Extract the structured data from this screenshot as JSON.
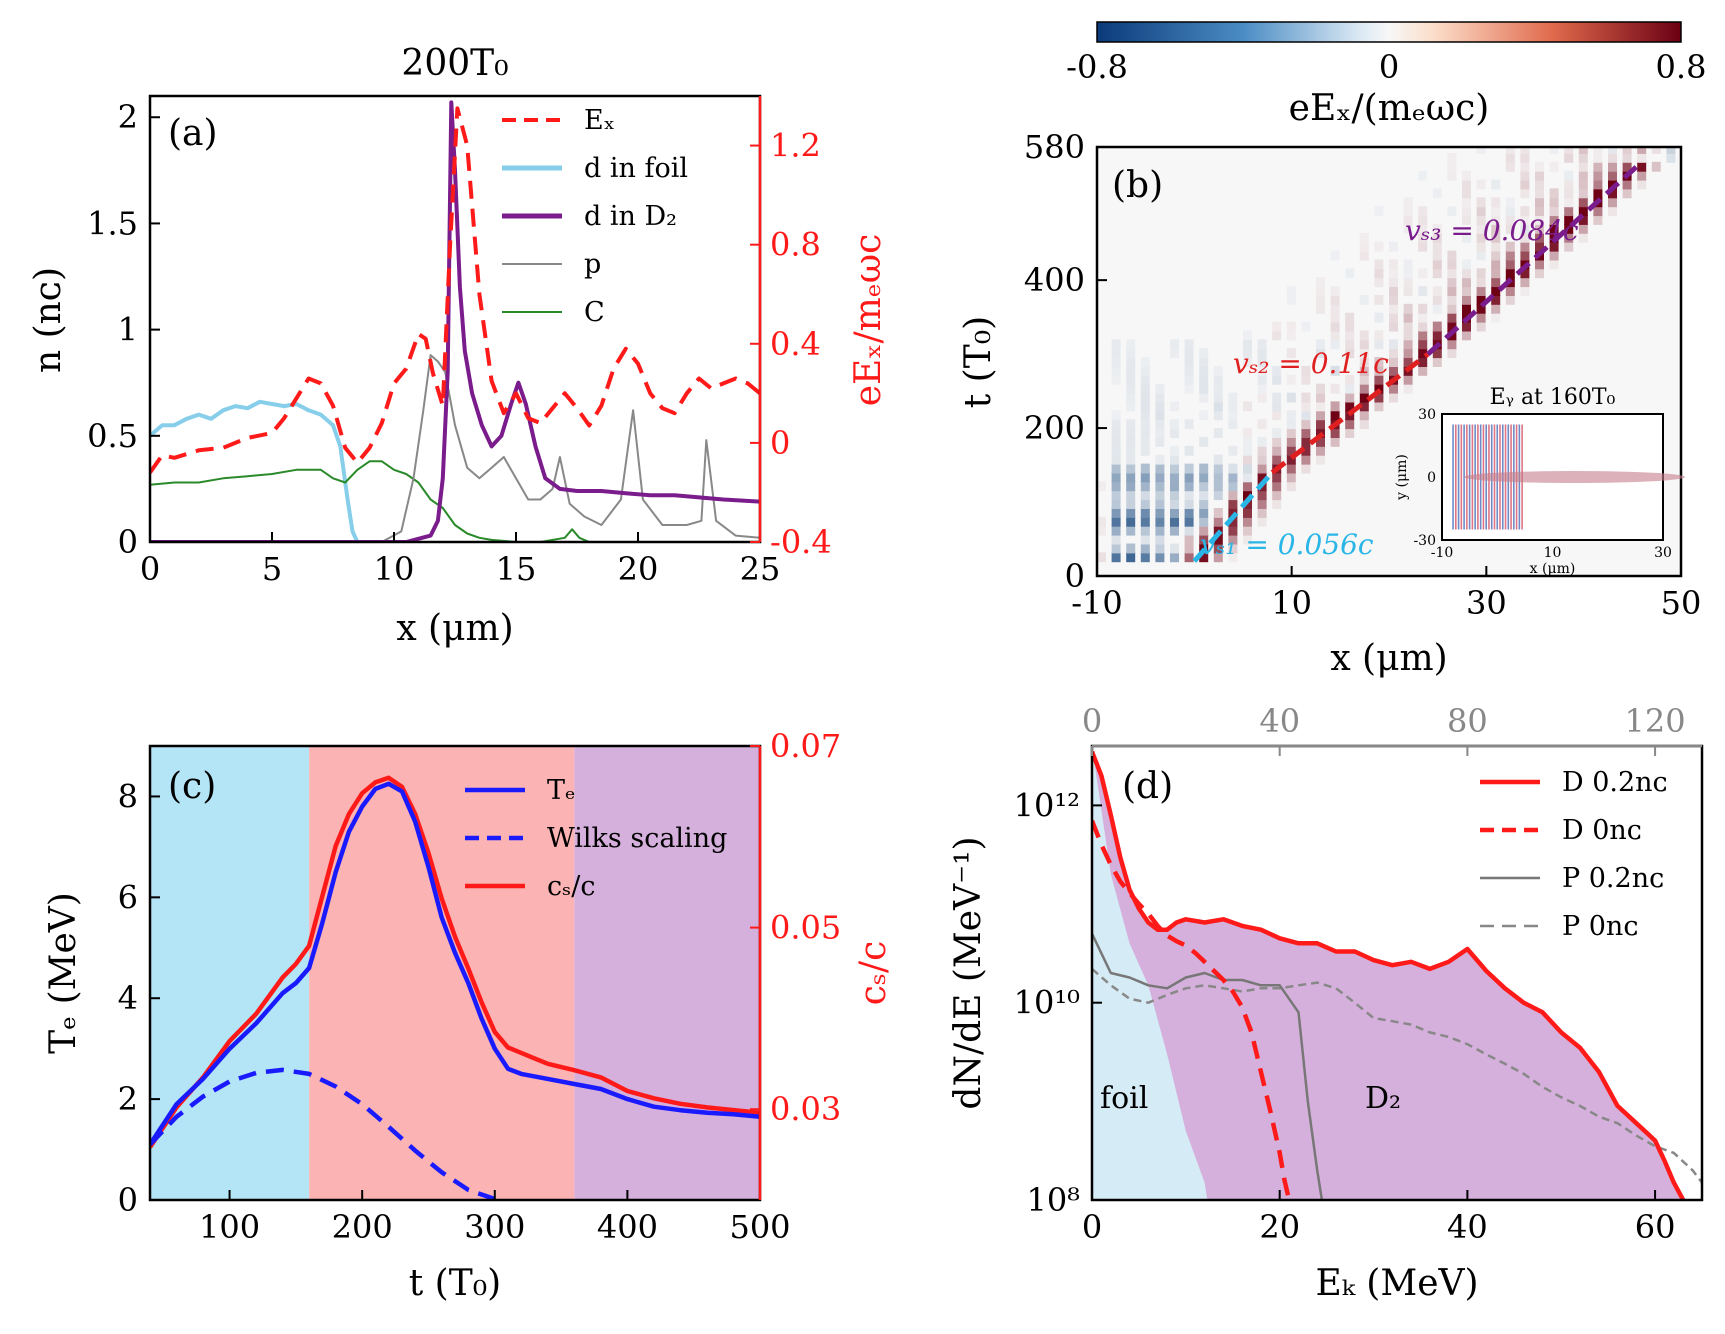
{
  "figure": {
    "panel_a_header": "200T₀"
  },
  "chart_data": [
    {
      "id": "a",
      "type": "line",
      "panel_label": "(a)",
      "title": "200T₀",
      "xlabel": "x (μm)",
      "ylabel": "n (nᴄ)",
      "y2label": "eEₓ/mₑωc",
      "xlim": [
        0,
        25
      ],
      "ylim": [
        0,
        2.1
      ],
      "y2lim": [
        -0.4,
        1.4
      ],
      "xticks": [
        "0",
        "5",
        "10",
        "15",
        "20",
        "25"
      ],
      "yticks": [
        "0",
        "0.5",
        "1",
        "1.5",
        "2"
      ],
      "y2ticks": [
        "-0.4",
        "0",
        "0.4",
        "0.8",
        "1.2"
      ],
      "legend": [
        "Eₓ",
        "d in foil",
        "d in D₂",
        "p",
        "C"
      ],
      "legend_position": "top-right",
      "series": [
        {
          "name": "Eₓ",
          "axis": "right",
          "color": "#ff1a1a",
          "dash": true,
          "x": [
            0,
            0.5,
            1,
            2,
            3,
            4,
            5,
            5.5,
            6,
            6.5,
            7,
            7.5,
            8,
            8.5,
            9,
            9.5,
            10,
            10.5,
            11,
            11.3,
            11.6,
            12,
            12.3,
            12.6,
            13,
            13.5,
            14,
            14.5,
            15,
            15.5,
            16,
            16.5,
            17,
            17.5,
            18,
            18.5,
            19,
            19.5,
            20,
            20.5,
            21,
            21.5,
            22,
            22.5,
            23,
            23.5,
            24,
            24.5,
            25
          ],
          "y": [
            -0.12,
            -0.05,
            -0.06,
            -0.03,
            -0.02,
            0.02,
            0.04,
            0.1,
            0.18,
            0.26,
            0.24,
            0.15,
            -0.02,
            -0.08,
            -0.02,
            0.08,
            0.24,
            0.3,
            0.44,
            0.42,
            0.28,
            0.15,
            0.8,
            1.35,
            1.2,
            0.6,
            0.25,
            0.12,
            0.2,
            0.1,
            0.08,
            0.14,
            0.2,
            0.14,
            0.07,
            0.15,
            0.3,
            0.38,
            0.32,
            0.2,
            0.14,
            0.12,
            0.2,
            0.26,
            0.22,
            0.24,
            0.26,
            0.24,
            0.2
          ]
        },
        {
          "name": "d in foil",
          "axis": "left",
          "color": "#87ceeb",
          "x": [
            0,
            0.5,
            1,
            1.5,
            2,
            2.5,
            3,
            3.5,
            4,
            4.5,
            5,
            5.5,
            6,
            6.5,
            7,
            7.5,
            7.8,
            8.1,
            8.3,
            8.5
          ],
          "y": [
            0.5,
            0.55,
            0.55,
            0.58,
            0.6,
            0.58,
            0.62,
            0.64,
            0.63,
            0.66,
            0.65,
            0.64,
            0.65,
            0.62,
            0.6,
            0.55,
            0.45,
            0.2,
            0.05,
            0
          ]
        },
        {
          "name": "d in D₂",
          "axis": "left",
          "color": "#7a1c8c",
          "x": [
            0,
            7,
            10.5,
            11.5,
            11.8,
            12.0,
            12.2,
            12.35,
            12.5,
            12.7,
            12.9,
            13.2,
            13.6,
            14,
            14.4,
            14.8,
            15.1,
            15.4,
            15.8,
            16.2,
            16.8,
            17.5,
            18.5,
            19.5,
            20.5,
            21.5,
            22.5,
            23.5,
            25
          ],
          "y": [
            0,
            0,
            0,
            0.03,
            0.1,
            0.3,
            0.8,
            2.07,
            1.75,
            1.2,
            0.9,
            0.7,
            0.55,
            0.45,
            0.5,
            0.65,
            0.75,
            0.65,
            0.45,
            0.3,
            0.25,
            0.24,
            0.24,
            0.23,
            0.22,
            0.22,
            0.21,
            0.2,
            0.19
          ]
        },
        {
          "name": "p",
          "axis": "left",
          "color": "#888888",
          "x": [
            0,
            9.5,
            10.3,
            10.8,
            11.2,
            11.5,
            11.8,
            12.1,
            12.5,
            13,
            13.5,
            14,
            14.5,
            15,
            15.5,
            16,
            16.5,
            16.8,
            17.2,
            17.8,
            18.5,
            19.3,
            19.8,
            20.2,
            21,
            22,
            22.6,
            22.8,
            23.2,
            24,
            25
          ],
          "y": [
            0,
            0,
            0.05,
            0.3,
            0.62,
            0.88,
            0.85,
            0.8,
            0.55,
            0.35,
            0.3,
            0.35,
            0.4,
            0.3,
            0.2,
            0.2,
            0.25,
            0.4,
            0.18,
            0.12,
            0.08,
            0.2,
            0.62,
            0.2,
            0.08,
            0.08,
            0.1,
            0.48,
            0.1,
            0.03,
            0.02
          ]
        },
        {
          "name": "C",
          "axis": "left",
          "color": "#2a8a2a",
          "x": [
            0,
            1,
            2,
            3,
            4,
            5,
            6,
            7,
            7.5,
            8,
            8.5,
            9,
            9.5,
            10,
            10.5,
            11,
            11.5,
            12,
            12.5,
            13,
            13.5,
            14,
            15,
            16,
            17,
            17.3,
            17.6,
            18,
            25
          ],
          "y": [
            0.27,
            0.28,
            0.28,
            0.3,
            0.31,
            0.32,
            0.34,
            0.34,
            0.3,
            0.28,
            0.34,
            0.38,
            0.38,
            0.34,
            0.32,
            0.28,
            0.2,
            0.16,
            0.08,
            0.04,
            0.02,
            0.01,
            0,
            0,
            0.02,
            0.06,
            0.02,
            0,
            0
          ]
        }
      ]
    },
    {
      "id": "b",
      "type": "heatmap",
      "panel_label": "(b)",
      "xlabel": "x (μm)",
      "ylabel": "t (T₀)",
      "xlim": [
        -10,
        50
      ],
      "ylim": [
        0,
        580
      ],
      "xticks": [
        "-10",
        "10",
        "30",
        "50"
      ],
      "yticks": [
        "0",
        "200",
        "400",
        "580"
      ],
      "colorbar": {
        "label": "eEₓ/(mₑωc)",
        "min": -0.8,
        "max": 0.8,
        "ticks": [
          "-0.8",
          "0",
          "0.8"
        ]
      },
      "fits": [
        {
          "label": "vₛ₁ = 0.056c",
          "color": "#29b6e6",
          "x": [
            0,
            8
          ],
          "y": [
            20,
            140
          ]
        },
        {
          "label": "vₛ₂ = 0.11c",
          "color": "#e02020",
          "x": [
            8,
            24
          ],
          "y": [
            140,
            300
          ]
        },
        {
          "label": "vₛ₃ = 0.084c",
          "color": "#7a1c8c",
          "x": [
            24,
            46
          ],
          "y": [
            300,
            560
          ]
        }
      ],
      "inset": {
        "title": "Eᵧ at 160T₀",
        "xlabel": "x (μm)",
        "ylabel": "y (μm)",
        "xticks": [
          "-10",
          "10",
          "30"
        ],
        "yticks": [
          "30",
          "0",
          "-30"
        ]
      }
    },
    {
      "id": "c",
      "type": "line",
      "panel_label": "(c)",
      "xlabel": "t (T₀)",
      "ylabel": "Tₑ (MeV)",
      "y2label": "cₛ/c",
      "xlim": [
        40,
        500
      ],
      "ylim": [
        0,
        9
      ],
      "y2lim": [
        0.02,
        0.07
      ],
      "xticks": [
        "100",
        "200",
        "300",
        "400",
        "500"
      ],
      "yticks": [
        "0",
        "2",
        "4",
        "6",
        "8"
      ],
      "y2ticks": [
        "0.03",
        "0.05",
        "0.07"
      ],
      "legend": [
        "Tₑ",
        "Wilks scaling",
        "cₛ/c"
      ],
      "legend_position": "top-right",
      "regions": [
        {
          "from": 40,
          "to": 160,
          "color": "#b3e5f7"
        },
        {
          "from": 160,
          "to": 360,
          "color": "#fbb3b3"
        },
        {
          "from": 360,
          "to": 500,
          "color": "#d6b0dc"
        }
      ],
      "series": [
        {
          "name": "Tₑ",
          "axis": "left",
          "color": "#1a1aff",
          "x": [
            40,
            60,
            80,
            100,
            120,
            140,
            150,
            160,
            170,
            180,
            190,
            200,
            210,
            220,
            230,
            240,
            250,
            260,
            270,
            280,
            290,
            300,
            310,
            320,
            330,
            340,
            360,
            380,
            400,
            420,
            440,
            460,
            480,
            500
          ],
          "y": [
            1.1,
            1.9,
            2.4,
            3.0,
            3.5,
            4.1,
            4.3,
            4.6,
            5.5,
            6.5,
            7.3,
            7.8,
            8.15,
            8.25,
            8.1,
            7.5,
            6.6,
            5.6,
            4.9,
            4.3,
            3.6,
            3.0,
            2.6,
            2.5,
            2.45,
            2.4,
            2.3,
            2.2,
            2.0,
            1.85,
            1.78,
            1.73,
            1.7,
            1.65
          ]
        },
        {
          "name": "Wilks scaling",
          "axis": "left",
          "color": "#1a1aff",
          "dash": true,
          "x": [
            40,
            60,
            80,
            100,
            120,
            140,
            160,
            180,
            200,
            220,
            240,
            260,
            280,
            300
          ],
          "y": [
            1.1,
            1.65,
            2.05,
            2.35,
            2.52,
            2.58,
            2.5,
            2.25,
            1.9,
            1.45,
            0.98,
            0.55,
            0.2,
            0.02
          ]
        },
        {
          "name": "cₛ/c",
          "axis": "right",
          "color": "#ff1a1a",
          "x": [
            40,
            60,
            80,
            100,
            120,
            140,
            150,
            160,
            170,
            180,
            190,
            200,
            210,
            220,
            230,
            240,
            250,
            260,
            270,
            280,
            290,
            300,
            310,
            320,
            330,
            340,
            360,
            380,
            400,
            420,
            440,
            460,
            480,
            500
          ],
          "y": [
            0.0258,
            0.0302,
            0.0335,
            0.0375,
            0.0405,
            0.0445,
            0.046,
            0.048,
            0.0535,
            0.059,
            0.0625,
            0.0648,
            0.066,
            0.0665,
            0.0655,
            0.0625,
            0.0582,
            0.0532,
            0.049,
            0.0455,
            0.0418,
            0.0385,
            0.0368,
            0.0362,
            0.0356,
            0.035,
            0.0343,
            0.0335,
            0.032,
            0.0312,
            0.0306,
            0.0302,
            0.0299,
            0.0296
          ]
        }
      ]
    },
    {
      "id": "d",
      "type": "line",
      "panel_label": "(d)",
      "xlabel": "Eₖ (MeV)",
      "ylabel": "dN/dE (MeV⁻¹)",
      "x2label": "",
      "xlim": [
        0,
        65
      ],
      "x2lim": [
        0,
        130
      ],
      "ylim": [
        100000000.0,
        4000000000000.0
      ],
      "yscale": "log",
      "xticks": [
        "0",
        "20",
        "40",
        "60"
      ],
      "x2ticks": [
        "0",
        "40",
        "80",
        "120"
      ],
      "yticks": [
        "10⁸",
        "10¹⁰",
        "10¹²"
      ],
      "legend": [
        "D 0.2nᴄ",
        "D 0nᴄ",
        "P 0.2nᴄ",
        "P 0nᴄ"
      ],
      "legend_position": "top-right",
      "annotations": [
        "foil",
        "D₂"
      ],
      "series": [
        {
          "name": "D 0.2nᴄ",
          "axis": "bottom",
          "color": "#ff1a1a",
          "fill": "#d6b0dc",
          "x": [
            0,
            1,
            2,
            3,
            4,
            5,
            6,
            7,
            8,
            9,
            10,
            12,
            14,
            16,
            18,
            20,
            22,
            24,
            26,
            28,
            30,
            32,
            34,
            36,
            38,
            40,
            42,
            44,
            46,
            48,
            50,
            52,
            54,
            56,
            58,
            60,
            61,
            62,
            63
          ],
          "y": [
            3500000000000.0,
            2000000000000.0,
            800000000000.0,
            300000000000.0,
            140000000000.0,
            90000000000.0,
            65000000000.0,
            55000000000.0,
            55000000000.0,
            65000000000.0,
            70000000000.0,
            65000000000.0,
            70000000000.0,
            60000000000.0,
            55000000000.0,
            45000000000.0,
            40000000000.0,
            40000000000.0,
            33000000000.0,
            33000000000.0,
            27000000000.0,
            24000000000.0,
            26000000000.0,
            22000000000.0,
            26000000000.0,
            35000000000.0,
            21000000000.0,
            14000000000.0,
            10000000000.0,
            8000000000.0,
            5000000000.0,
            3500000000.0,
            2000000000.0,
            900000000.0,
            600000000.0,
            400000000.0,
            250000000.0,
            150000000.0,
            100000000.0
          ]
        },
        {
          "name": "D 0nᴄ",
          "axis": "bottom",
          "color": "#ff1a1a",
          "dash": true,
          "x": [
            0,
            1,
            2,
            3,
            4,
            5,
            6,
            7,
            8,
            9,
            10,
            11,
            12,
            13,
            14,
            15,
            16,
            17,
            18,
            19,
            20,
            20.5,
            21
          ],
          "y": [
            700000000000.0,
            400000000000.0,
            250000000000.0,
            170000000000.0,
            130000000000.0,
            100000000000.0,
            80000000000.0,
            60000000000.0,
            48000000000.0,
            42000000000.0,
            38000000000.0,
            32000000000.0,
            26000000000.0,
            21000000000.0,
            17000000000.0,
            13000000000.0,
            9000000000.0,
            5000000000.0,
            2000000000.0,
            800000000.0,
            300000000.0,
            160000000.0,
            100000000.0
          ]
        },
        {
          "name": "P 0.2nᴄ",
          "axis": "top",
          "color": "#777777",
          "x": [
            0,
            4,
            8,
            12,
            16,
            20,
            24,
            28,
            32,
            36,
            40,
            44,
            46,
            48,
            49
          ],
          "y": [
            50000000000.0,
            20000000000.0,
            18000000000.0,
            15000000000.0,
            14000000000.0,
            18000000000.0,
            20000000000.0,
            17000000000.0,
            17000000000.0,
            15000000000.0,
            15000000000.0,
            8000000000.0,
            1000000000.0,
            200000000.0,
            100000000.0
          ]
        },
        {
          "name": "P 0nᴄ",
          "axis": "top",
          "color": "#888888",
          "dash": true,
          "x": [
            0,
            4,
            8,
            12,
            16,
            20,
            24,
            28,
            32,
            36,
            40,
            44,
            48,
            52,
            56,
            60,
            64,
            68,
            72,
            76,
            80,
            84,
            88,
            92,
            96,
            100,
            104,
            108,
            112,
            116,
            120,
            124,
            128,
            130
          ],
          "y": [
            22000000000.0,
            15000000000.0,
            11000000000.0,
            10000000000.0,
            12000000000.0,
            14000000000.0,
            15000000000.0,
            14000000000.0,
            13000000000.0,
            14000000000.0,
            14000000000.0,
            15000000000.0,
            16000000000.0,
            14000000000.0,
            10000000000.0,
            7000000000.0,
            6500000000.0,
            6000000000.0,
            5000000000.0,
            4500000000.0,
            3800000000.0,
            3000000000.0,
            2400000000.0,
            1900000000.0,
            1400000000.0,
            1100000000.0,
            900000000.0,
            700000000.0,
            600000000.0,
            450000000.0,
            350000000.0,
            300000000.0,
            200000000.0,
            150000000.0
          ]
        }
      ]
    }
  ]
}
